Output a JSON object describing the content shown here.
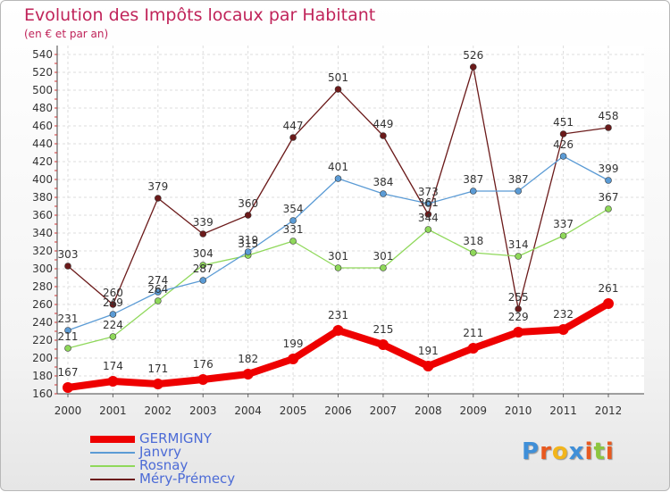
{
  "chart_data": {
    "type": "line",
    "title": "Evolution des Impôts locaux par Habitant",
    "subtitle": "(en € et par an)",
    "xlabel": "",
    "ylabel": "",
    "x": [
      "2000",
      "2001",
      "2002",
      "2003",
      "2004",
      "2005",
      "2006",
      "2007",
      "2008",
      "2009",
      "2010",
      "2011",
      "2012"
    ],
    "ylim": [
      160,
      540
    ],
    "yticks": [
      160,
      180,
      200,
      220,
      240,
      260,
      280,
      300,
      320,
      340,
      360,
      380,
      400,
      420,
      440,
      460,
      480,
      500,
      520,
      540
    ],
    "grid": true,
    "legend_position": "bottom-left",
    "series": [
      {
        "name": "GERMIGNY",
        "color": "#ee0000",
        "values": [
          167,
          174,
          171,
          176,
          182,
          199,
          231,
          215,
          191,
          211,
          229,
          232,
          261
        ]
      },
      {
        "name": "Janvry",
        "color": "#5b9bd5",
        "values": [
          231,
          249,
          274,
          287,
          319,
          354,
          401,
          384,
          373,
          387,
          387,
          426,
          399
        ]
      },
      {
        "name": "Rosnay",
        "color": "#8fd85a",
        "values": [
          211,
          224,
          264,
          304,
          315,
          331,
          301,
          301,
          344,
          318,
          314,
          337,
          367
        ]
      },
      {
        "name": "Méry-Prémecy",
        "color": "#6b1a1a",
        "values": [
          303,
          260,
          379,
          339,
          360,
          447,
          501,
          449,
          361,
          526,
          255,
          451,
          458
        ]
      }
    ]
  },
  "logo": {
    "letters": [
      "P",
      "r",
      "o",
      "x",
      "i",
      "t",
      "i"
    ],
    "colors": [
      "#3f8fd8",
      "#e8591f",
      "#f2b51c",
      "#3f8fd8",
      "#e8591f",
      "#8cc63f",
      "#e8591f"
    ]
  }
}
